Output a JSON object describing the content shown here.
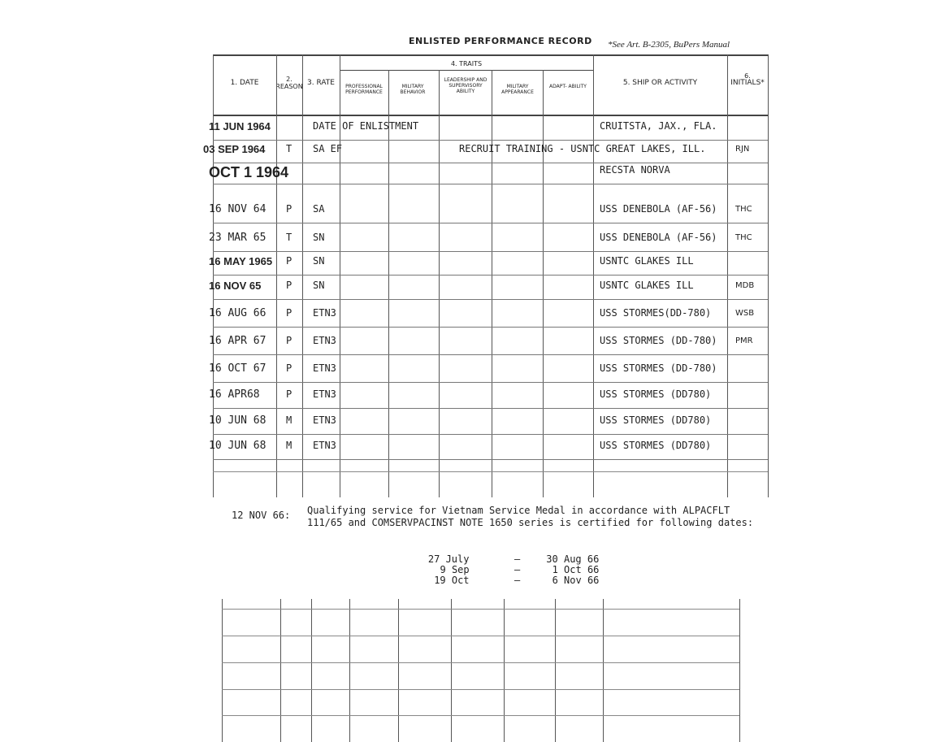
{
  "form": {
    "title": "ENLISTED PERFORMANCE RECORD",
    "note": "*See Art. B-2305, BuPers Manual"
  },
  "headers": {
    "date": "1. DATE",
    "reason_num": "2.",
    "reason": "REASON",
    "rate": "3. RATE",
    "traits": "4. TRAITS",
    "traits_cols": [
      "PROFESSIONAL PERFORMANCE",
      "MILITARY BEHAVIOR",
      "LEADERSHIP AND SUPERVISORY ABILITY",
      "MILITARY APPEARANCE",
      "ADAPT- ABILITY"
    ],
    "ship": "5. SHIP OR ACTIVITY",
    "initials_num": "6.",
    "initials": "INITIALS*"
  },
  "rows": [
    {
      "date": "11 JUN 1964",
      "reason": "",
      "rate": "DATE OF ENLISTMENT",
      "ship": "CRUITSTA, JAX., FLA.",
      "initials": ""
    },
    {
      "date": "03 SEP 1964",
      "reason": "T",
      "rate": "SA EF",
      "ship": "RECRUIT TRAINING - USNTC GREAT LAKES, ILL.",
      "initials": "RJN"
    },
    {
      "date": "OCT 1 1964",
      "reason": "",
      "rate": "",
      "ship": "RECSTA NORVA",
      "initials": ""
    },
    {
      "date": "16 NOV 64",
      "reason": "P",
      "rate": "SA",
      "ship": "USS DENEBOLA (AF-56)",
      "initials": "THC"
    },
    {
      "date": "23 MAR 65",
      "reason": "T",
      "rate": "SN",
      "ship": "USS DENEBOLA (AF-56)",
      "initials": "THC"
    },
    {
      "date": "16 MAY 1965",
      "reason": "P",
      "rate": "SN",
      "ship": "USNTC GLAKES ILL",
      "initials": ""
    },
    {
      "date": "16 NOV 65",
      "reason": "P",
      "rate": "SN",
      "ship": "USNTC GLAKES ILL",
      "initials": "MDB"
    },
    {
      "date": "16 AUG 66",
      "reason": "P",
      "rate": "ETN3",
      "ship": "USS STORMES(DD-780)",
      "initials": "WSB"
    },
    {
      "date": "16 APR 67",
      "reason": "P",
      "rate": "ETN3",
      "ship": "USS STORMES (DD-780)",
      "initials": "PMR"
    },
    {
      "date": "16 OCT 67",
      "reason": "P",
      "rate": "ETN3",
      "ship": "USS STORMES (DD-780)",
      "initials": ""
    },
    {
      "date": "16 APR68",
      "reason": "P",
      "rate": "ETN3",
      "ship": "USS STORMES (DD780)",
      "initials": ""
    },
    {
      "date": "10 JUN 68",
      "reason": "M",
      "rate": "ETN3",
      "ship": "USS STORMES (DD780)",
      "initials": ""
    },
    {
      "date": "10 JUN 68",
      "reason": "M",
      "rate": "ETN3",
      "ship": "USS STORMES (DD780)",
      "initials": ""
    }
  ],
  "remark": {
    "date": "12 NOV 66:",
    "line1": "Qualifying service for Vietnam Service Medal in accordance with ALPACFLT",
    "line2": "111/65 and COMSERVPACINST NOTE 1650 series is certified for following dates:",
    "periods": [
      {
        "from": "27 July",
        "to": "30 Aug 66"
      },
      {
        "from": "9 Sep",
        "to": "1 Oct 66"
      },
      {
        "from": "19 Oct",
        "to": "6 Nov 66"
      }
    ]
  }
}
